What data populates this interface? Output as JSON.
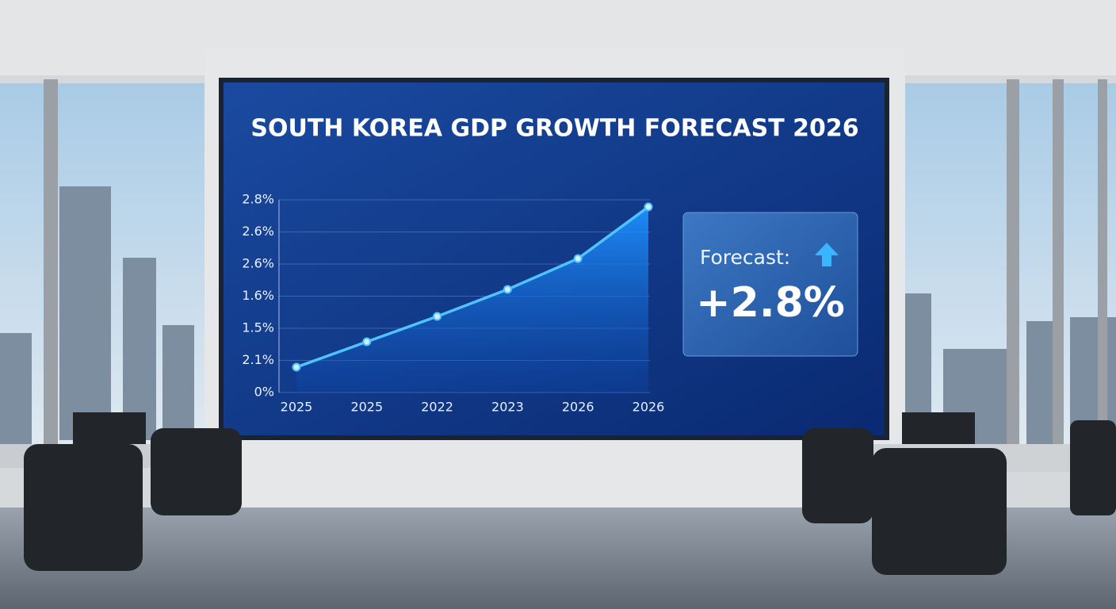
{
  "chart_data": {
    "type": "line",
    "title": "SOUTH KOREA GDP GROWTH FORECAST 2026",
    "categories": [
      "2025",
      "2025",
      "2022",
      "2023",
      "2026",
      "2026"
    ],
    "series": [
      {
        "color": "#4fc3ff",
        "values": [
          0.79,
          1.58,
          2.37,
          3.21,
          4.17,
          5.78
        ]
      }
    ],
    "ylim": [
      0,
      6
    ],
    "yticks": [
      {
        "value": 0,
        "label": "0%"
      },
      {
        "value": 1,
        "label": "2.1%"
      },
      {
        "value": 2,
        "label": "1.5%"
      },
      {
        "value": 3,
        "label": "1.6%"
      },
      {
        "value": 4,
        "label": "2.6%"
      },
      {
        "value": 5,
        "label": "2.6%"
      },
      {
        "value": 6,
        "label": "2.8%"
      }
    ],
    "grid": true,
    "callout": {
      "label": "Forecast:",
      "value": "+2.8%"
    }
  }
}
